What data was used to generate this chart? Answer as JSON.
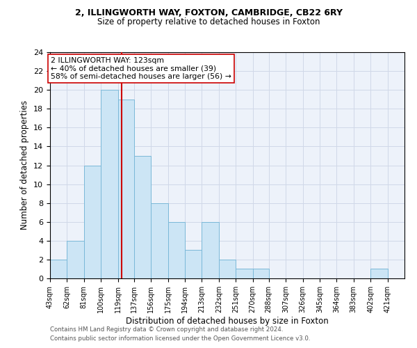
{
  "title1": "2, ILLINGWORTH WAY, FOXTON, CAMBRIDGE, CB22 6RY",
  "title2": "Size of property relative to detached houses in Foxton",
  "xlabel": "Distribution of detached houses by size in Foxton",
  "ylabel": "Number of detached properties",
  "bin_labels": [
    "43sqm",
    "62sqm",
    "81sqm",
    "100sqm",
    "119sqm",
    "137sqm",
    "156sqm",
    "175sqm",
    "194sqm",
    "213sqm",
    "232sqm",
    "251sqm",
    "270sqm",
    "288sqm",
    "307sqm",
    "326sqm",
    "345sqm",
    "364sqm",
    "383sqm",
    "402sqm",
    "421sqm"
  ],
  "bin_edges": [
    43,
    62,
    81,
    100,
    119,
    137,
    156,
    175,
    194,
    213,
    232,
    251,
    270,
    288,
    307,
    326,
    345,
    364,
    383,
    402,
    421,
    440
  ],
  "counts": [
    2,
    4,
    12,
    20,
    19,
    13,
    8,
    6,
    3,
    6,
    2,
    1,
    1,
    0,
    0,
    0,
    0,
    0,
    0,
    1,
    0
  ],
  "bar_facecolor": "#cce5f5",
  "bar_edgecolor": "#7ab8d8",
  "vline_x": 123,
  "vline_color": "#cc0000",
  "ylim": [
    0,
    24
  ],
  "yticks": [
    0,
    2,
    4,
    6,
    8,
    10,
    12,
    14,
    16,
    18,
    20,
    22,
    24
  ],
  "annotation_title": "2 ILLINGWORTH WAY: 123sqm",
  "annotation_line1": "← 40% of detached houses are smaller (39)",
  "annotation_line2": "58% of semi-detached houses are larger (56) →",
  "annotation_box_color": "#ffffff",
  "annotation_box_edgecolor": "#cc0000",
  "footer1": "Contains HM Land Registry data © Crown copyright and database right 2024.",
  "footer2": "Contains public sector information licensed under the Open Government Licence v3.0.",
  "grid_color": "#d0d8e8",
  "background_color": "#edf2fa"
}
